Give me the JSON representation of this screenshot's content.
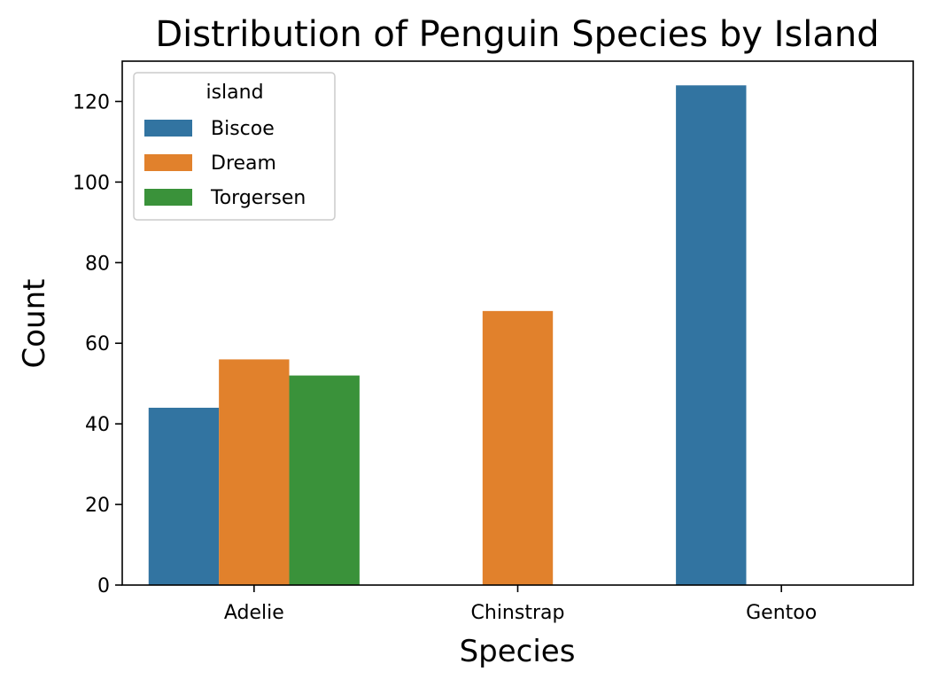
{
  "chart_data": {
    "type": "bar",
    "title": "Distribution of Penguin Species by Island",
    "xlabel": "Species",
    "ylabel": "Count",
    "categories": [
      "Adelie",
      "Chinstrap",
      "Gentoo"
    ],
    "series": [
      {
        "name": "Biscoe",
        "color": "#3274a1",
        "values": [
          44,
          0,
          124
        ]
      },
      {
        "name": "Dream",
        "color": "#e1812c",
        "values": [
          56,
          68,
          0
        ]
      },
      {
        "name": "Torgersen",
        "color": "#3a923a",
        "values": [
          52,
          0,
          0
        ]
      }
    ],
    "ylim": [
      0,
      130
    ],
    "yticks": [
      0,
      20,
      40,
      60,
      80,
      100,
      120
    ],
    "legend": {
      "title": "island",
      "position": "top-left"
    },
    "grid": false
  }
}
